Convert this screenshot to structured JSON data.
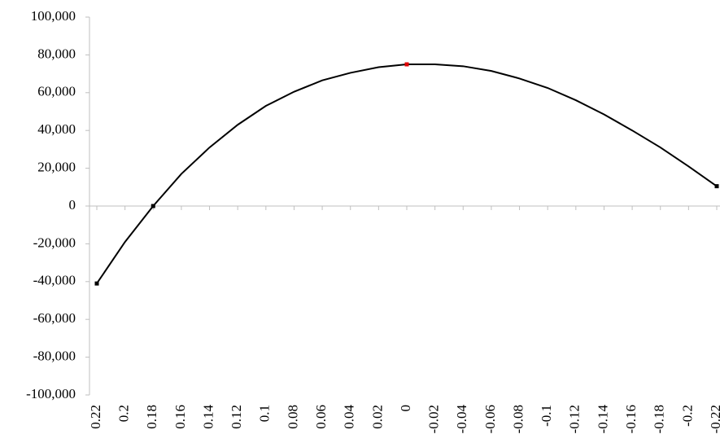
{
  "chart_data": {
    "type": "line",
    "x": [
      0.22,
      0.2,
      0.18,
      0.16,
      0.14,
      0.12,
      0.1,
      0.08,
      0.06,
      0.04,
      0.02,
      0,
      -0.02,
      -0.04,
      -0.06,
      -0.08,
      -0.1,
      -0.12,
      -0.14,
      -0.16,
      -0.18,
      -0.2,
      -0.22
    ],
    "series": [
      {
        "color": "#000000",
        "values": [
          -41000,
          -19000,
          0,
          17000,
          31000,
          43000,
          53000,
          60500,
          66500,
          70500,
          73500,
          75000,
          75000,
          74000,
          71500,
          67500,
          62500,
          56000,
          48500,
          40000,
          31000,
          21000,
          10500
        ]
      }
    ],
    "markers": {
      "x": [
        0.22,
        0.18,
        0,
        -0.22
      ],
      "values": [
        -41000,
        0,
        75000,
        10500
      ],
      "colors": [
        "#000000",
        "#000000",
        "#e00000",
        "#000000"
      ]
    },
    "xlim": [
      0.22,
      -0.22
    ],
    "xticks": [
      0.22,
      0.2,
      0.18,
      0.16,
      0.14,
      0.12,
      0.1,
      0.08,
      0.06,
      0.04,
      0.02,
      0,
      -0.02,
      -0.04,
      -0.06,
      -0.08,
      -0.1,
      -0.12,
      -0.14,
      -0.16,
      -0.18,
      -0.2,
      -0.22
    ],
    "ylim": [
      -100000,
      100000
    ],
    "yticks": [
      {
        "value": -100000,
        "label": "-100,000"
      },
      {
        "value": -80000,
        "label": "-80,000"
      },
      {
        "value": -60000,
        "label": "-60,000"
      },
      {
        "value": -40000,
        "label": "-40,000"
      },
      {
        "value": -20000,
        "label": "-20,000"
      },
      0,
      {
        "value": 20000,
        "label": "20,000"
      },
      {
        "value": 40000,
        "label": "40,000"
      },
      {
        "value": 60000,
        "label": "60,000"
      },
      {
        "value": 80000,
        "label": "80,000"
      },
      {
        "value": 100000,
        "label": "100,000"
      }
    ]
  }
}
